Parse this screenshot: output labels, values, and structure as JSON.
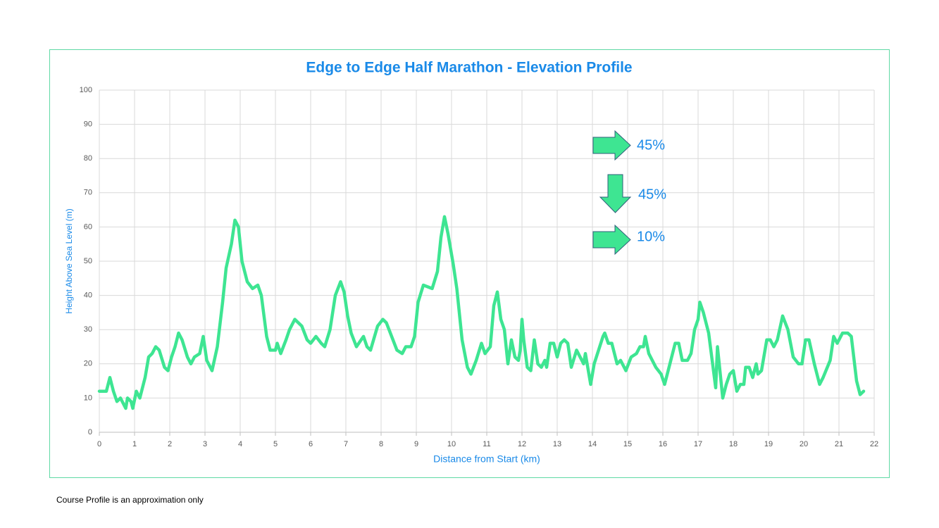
{
  "chart_data": {
    "type": "line",
    "title": "Edge to Edge Half Marathon - Elevation Profile",
    "xlabel": "Distance from Start (km)",
    "ylabel": "Height Above Sea Level (m)",
    "color": "#3ee592",
    "grid": true,
    "xlim": [
      0,
      22
    ],
    "xticks": [
      0,
      1,
      2,
      3,
      4,
      5,
      6,
      7,
      8,
      9,
      10,
      11,
      12,
      13,
      14,
      15,
      16,
      17,
      18,
      19,
      20,
      21,
      22
    ],
    "ylim": [
      0,
      100
    ],
    "yticks": [
      0,
      10,
      20,
      30,
      40,
      50,
      60,
      70,
      80,
      90,
      100
    ],
    "x": [
      0,
      0.2,
      0.3,
      0.4,
      0.5,
      0.6,
      0.7,
      0.75,
      0.8,
      0.9,
      0.95,
      1.05,
      1.15,
      1.3,
      1.4,
      1.5,
      1.6,
      1.7,
      1.85,
      1.95,
      2.05,
      2.15,
      2.25,
      2.35,
      2.5,
      2.6,
      2.7,
      2.85,
      2.95,
      3.05,
      3.2,
      3.35,
      3.5,
      3.6,
      3.75,
      3.85,
      3.95,
      4.05,
      4.2,
      4.35,
      4.5,
      4.6,
      4.75,
      4.85,
      5.0,
      5.05,
      5.15,
      5.3,
      5.4,
      5.55,
      5.75,
      5.9,
      6.0,
      6.15,
      6.3,
      6.4,
      6.55,
      6.7,
      6.85,
      6.95,
      7.05,
      7.15,
      7.3,
      7.5,
      7.6,
      7.7,
      7.9,
      8.05,
      8.15,
      8.3,
      8.45,
      8.6,
      8.7,
      8.85,
      8.95,
      9.05,
      9.2,
      9.45,
      9.6,
      9.7,
      9.8,
      9.9,
      10.05,
      10.15,
      10.3,
      10.45,
      10.55,
      10.7,
      10.85,
      10.95,
      11.1,
      11.2,
      11.3,
      11.4,
      11.5,
      11.6,
      11.7,
      11.8,
      11.9,
      11.95,
      12.0,
      12.05,
      12.15,
      12.25,
      12.35,
      12.45,
      12.55,
      12.65,
      12.7,
      12.8,
      12.9,
      13.0,
      13.1,
      13.2,
      13.3,
      13.4,
      13.55,
      13.7,
      13.75,
      13.8,
      13.85,
      13.95,
      14.05,
      14.3,
      14.35,
      14.45,
      14.55,
      14.7,
      14.8,
      14.95,
      15.1,
      15.25,
      15.35,
      15.45,
      15.5,
      15.6,
      15.8,
      15.95,
      16.05,
      16.2,
      16.35,
      16.45,
      16.55,
      16.7,
      16.8,
      16.9,
      17.0,
      17.05,
      17.15,
      17.3,
      17.5,
      17.55,
      17.7,
      17.8,
      17.9,
      18.0,
      18.1,
      18.2,
      18.3,
      18.35,
      18.45,
      18.55,
      18.65,
      18.7,
      18.8,
      18.95,
      19.05,
      19.15,
      19.25,
      19.4,
      19.55,
      19.7,
      19.85,
      19.95,
      20.05,
      20.15,
      20.3,
      20.45,
      20.55,
      20.75,
      20.85,
      20.95,
      21.1,
      21.25,
      21.35,
      21.5,
      21.6,
      21.7
    ],
    "values": [
      12,
      12,
      16,
      12,
      9,
      10,
      8,
      7,
      10,
      9,
      7,
      12,
      10,
      16,
      22,
      23,
      25,
      24,
      19,
      18,
      22,
      25,
      29,
      27,
      22,
      20,
      22,
      23,
      28,
      21,
      18,
      25,
      38,
      48,
      55,
      62,
      60,
      50,
      44,
      42,
      43,
      40,
      28,
      24,
      24,
      26,
      23,
      27,
      30,
      33,
      31,
      27,
      26,
      28,
      26,
      25,
      30,
      40,
      44,
      41,
      34,
      29,
      25,
      28,
      25,
      24,
      31,
      33,
      32,
      28,
      24,
      23,
      25,
      25,
      28,
      38,
      43,
      42,
      47,
      57,
      63,
      58,
      49,
      42,
      27,
      19,
      17,
      21,
      26,
      23,
      25,
      37,
      41,
      33,
      30,
      20,
      27,
      22,
      21,
      24,
      33,
      27,
      19,
      18,
      27,
      20,
      19,
      21,
      19,
      26,
      26,
      22,
      26,
      27,
      26,
      19,
      24,
      21,
      20,
      23,
      20,
      14,
      20,
      28,
      29,
      26,
      26,
      20,
      21,
      18,
      22,
      23,
      25,
      25,
      28,
      23,
      19,
      17,
      14,
      20,
      26,
      26,
      21,
      21,
      23,
      30,
      33,
      38,
      35,
      29,
      13,
      25,
      10,
      14,
      17,
      18,
      12,
      14,
      14,
      19,
      19,
      16,
      20,
      17,
      18,
      27,
      27,
      25,
      27,
      34,
      30,
      22,
      20,
      20,
      27,
      27,
      20,
      14,
      16,
      21,
      28,
      26,
      29,
      29,
      28,
      15,
      11,
      12
    ],
    "annotations": [
      "45%",
      "45%",
      "10%"
    ]
  },
  "footnote": "Course Profile is an approximation only"
}
